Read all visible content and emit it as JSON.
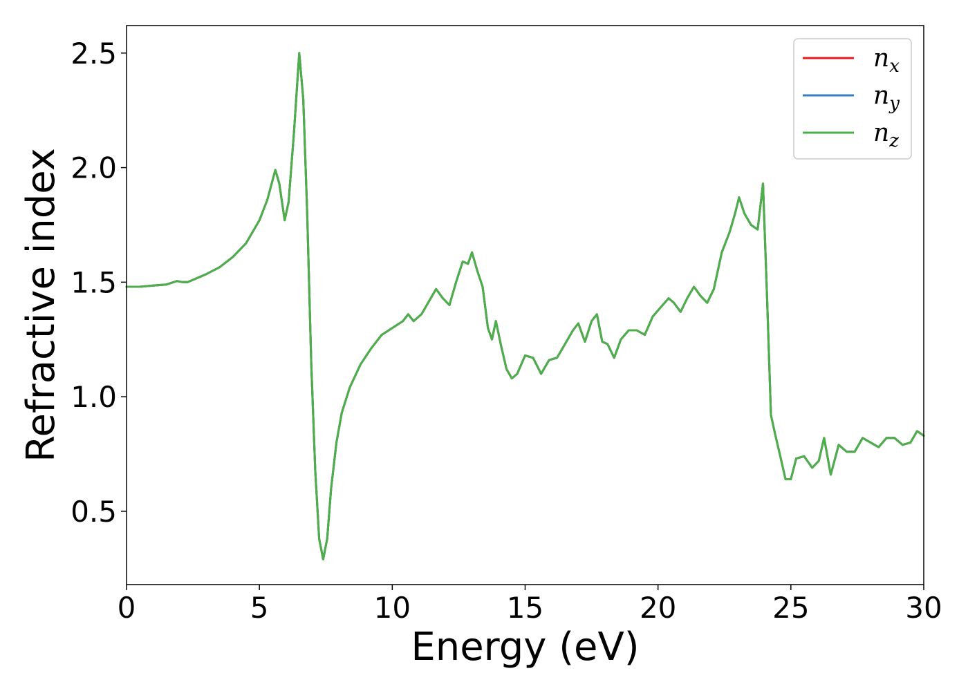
{
  "chart_data": {
    "type": "line",
    "title": "",
    "xlabel": "Energy (eV)",
    "ylabel": "Refractive index",
    "xlim": [
      0,
      30
    ],
    "ylim": [
      0.18,
      2.62
    ],
    "xticks": [
      0,
      5,
      10,
      15,
      20,
      25,
      30
    ],
    "yticks": [
      0.5,
      1.0,
      1.5,
      2.0,
      2.5
    ],
    "xtick_labels": [
      "0",
      "5",
      "10",
      "15",
      "20",
      "25",
      "30"
    ],
    "ytick_labels": [
      "0.5",
      "1.0",
      "1.5",
      "2.0",
      "2.5"
    ],
    "grid": false,
    "legend_position": "top-right",
    "x": [
      0,
      0.5,
      1,
      1.5,
      1.9,
      2.1,
      2.3,
      2.6,
      3,
      3.5,
      4,
      4.5,
      5,
      5.3,
      5.6,
      5.75,
      5.95,
      6.1,
      6.3,
      6.5,
      6.65,
      6.8,
      6.95,
      7.1,
      7.25,
      7.4,
      7.55,
      7.7,
      7.9,
      8.1,
      8.4,
      8.8,
      9.2,
      9.6,
      10,
      10.4,
      10.6,
      10.8,
      11.1,
      11.4,
      11.65,
      11.9,
      12.15,
      12.4,
      12.65,
      12.85,
      13,
      13.2,
      13.4,
      13.6,
      13.75,
      13.9,
      14.1,
      14.3,
      14.5,
      14.7,
      15,
      15.3,
      15.6,
      15.9,
      16.2,
      16.5,
      16.8,
      17,
      17.25,
      17.5,
      17.7,
      17.9,
      18.1,
      18.35,
      18.6,
      18.9,
      19.2,
      19.5,
      19.8,
      20.1,
      20.4,
      20.6,
      20.85,
      21.1,
      21.35,
      21.6,
      21.85,
      22.1,
      22.4,
      22.7,
      22.9,
      23.05,
      23.25,
      23.5,
      23.75,
      23.95,
      24.1,
      24.25,
      24.4,
      24.6,
      24.8,
      25,
      25.2,
      25.5,
      25.8,
      26.05,
      26.25,
      26.5,
      26.8,
      27.1,
      27.4,
      27.7,
      28,
      28.3,
      28.6,
      28.9,
      29.2,
      29.5,
      29.75,
      30
    ],
    "series": [
      {
        "name": "n_x",
        "color": "#e41a1c",
        "values": [
          1.48,
          1.48,
          1.485,
          1.49,
          1.505,
          1.5,
          1.5,
          1.515,
          1.535,
          1.565,
          1.61,
          1.67,
          1.77,
          1.86,
          1.99,
          1.93,
          1.77,
          1.85,
          2.15,
          2.5,
          2.3,
          1.8,
          1.15,
          0.68,
          0.38,
          0.29,
          0.38,
          0.6,
          0.8,
          0.93,
          1.04,
          1.14,
          1.21,
          1.27,
          1.3,
          1.33,
          1.36,
          1.33,
          1.36,
          1.42,
          1.47,
          1.43,
          1.4,
          1.5,
          1.59,
          1.58,
          1.63,
          1.55,
          1.48,
          1.3,
          1.25,
          1.33,
          1.22,
          1.12,
          1.08,
          1.1,
          1.18,
          1.17,
          1.1,
          1.16,
          1.17,
          1.23,
          1.29,
          1.32,
          1.24,
          1.33,
          1.36,
          1.24,
          1.23,
          1.17,
          1.25,
          1.29,
          1.29,
          1.27,
          1.35,
          1.39,
          1.43,
          1.41,
          1.37,
          1.43,
          1.48,
          1.44,
          1.41,
          1.47,
          1.63,
          1.72,
          1.8,
          1.87,
          1.8,
          1.75,
          1.73,
          1.93,
          1.45,
          0.92,
          0.84,
          0.74,
          0.64,
          0.64,
          0.73,
          0.74,
          0.69,
          0.72,
          0.82,
          0.66,
          0.79,
          0.76,
          0.76,
          0.82,
          0.8,
          0.78,
          0.82,
          0.82,
          0.79,
          0.8,
          0.85,
          0.83
        ]
      },
      {
        "name": "n_y",
        "color": "#377eb8",
        "values": [
          1.48,
          1.48,
          1.485,
          1.49,
          1.505,
          1.5,
          1.5,
          1.515,
          1.535,
          1.565,
          1.61,
          1.67,
          1.77,
          1.86,
          1.99,
          1.93,
          1.77,
          1.85,
          2.15,
          2.5,
          2.3,
          1.8,
          1.15,
          0.68,
          0.38,
          0.29,
          0.38,
          0.6,
          0.8,
          0.93,
          1.04,
          1.14,
          1.21,
          1.27,
          1.3,
          1.33,
          1.36,
          1.33,
          1.36,
          1.42,
          1.47,
          1.43,
          1.4,
          1.5,
          1.59,
          1.58,
          1.63,
          1.55,
          1.48,
          1.3,
          1.25,
          1.33,
          1.22,
          1.12,
          1.08,
          1.1,
          1.18,
          1.17,
          1.1,
          1.16,
          1.17,
          1.23,
          1.29,
          1.32,
          1.24,
          1.33,
          1.36,
          1.24,
          1.23,
          1.17,
          1.25,
          1.29,
          1.29,
          1.27,
          1.35,
          1.39,
          1.43,
          1.41,
          1.37,
          1.43,
          1.48,
          1.44,
          1.41,
          1.47,
          1.63,
          1.72,
          1.8,
          1.87,
          1.8,
          1.75,
          1.73,
          1.93,
          1.45,
          0.92,
          0.84,
          0.74,
          0.64,
          0.64,
          0.73,
          0.74,
          0.69,
          0.72,
          0.82,
          0.66,
          0.79,
          0.76,
          0.76,
          0.82,
          0.8,
          0.78,
          0.82,
          0.82,
          0.79,
          0.8,
          0.85,
          0.83
        ]
      },
      {
        "name": "n_z",
        "color": "#4daf4a",
        "values": [
          1.48,
          1.48,
          1.485,
          1.49,
          1.505,
          1.5,
          1.5,
          1.515,
          1.535,
          1.565,
          1.61,
          1.67,
          1.77,
          1.86,
          1.99,
          1.93,
          1.77,
          1.85,
          2.15,
          2.5,
          2.3,
          1.8,
          1.15,
          0.68,
          0.38,
          0.29,
          0.38,
          0.6,
          0.8,
          0.93,
          1.04,
          1.14,
          1.21,
          1.27,
          1.3,
          1.33,
          1.36,
          1.33,
          1.36,
          1.42,
          1.47,
          1.43,
          1.4,
          1.5,
          1.59,
          1.58,
          1.63,
          1.55,
          1.48,
          1.3,
          1.25,
          1.33,
          1.22,
          1.12,
          1.08,
          1.1,
          1.18,
          1.17,
          1.1,
          1.16,
          1.17,
          1.23,
          1.29,
          1.32,
          1.24,
          1.33,
          1.36,
          1.24,
          1.23,
          1.17,
          1.25,
          1.29,
          1.29,
          1.27,
          1.35,
          1.39,
          1.43,
          1.41,
          1.37,
          1.43,
          1.48,
          1.44,
          1.41,
          1.47,
          1.63,
          1.72,
          1.8,
          1.87,
          1.8,
          1.75,
          1.73,
          1.93,
          1.45,
          0.92,
          0.84,
          0.74,
          0.64,
          0.64,
          0.73,
          0.74,
          0.69,
          0.72,
          0.82,
          0.66,
          0.79,
          0.76,
          0.76,
          0.82,
          0.8,
          0.78,
          0.82,
          0.82,
          0.79,
          0.8,
          0.85,
          0.83
        ]
      }
    ],
    "legend": [
      {
        "base": "n",
        "sub": "x",
        "color": "#e41a1c"
      },
      {
        "base": "n",
        "sub": "y",
        "color": "#377eb8"
      },
      {
        "base": "n",
        "sub": "z",
        "color": "#4daf4a"
      }
    ]
  }
}
